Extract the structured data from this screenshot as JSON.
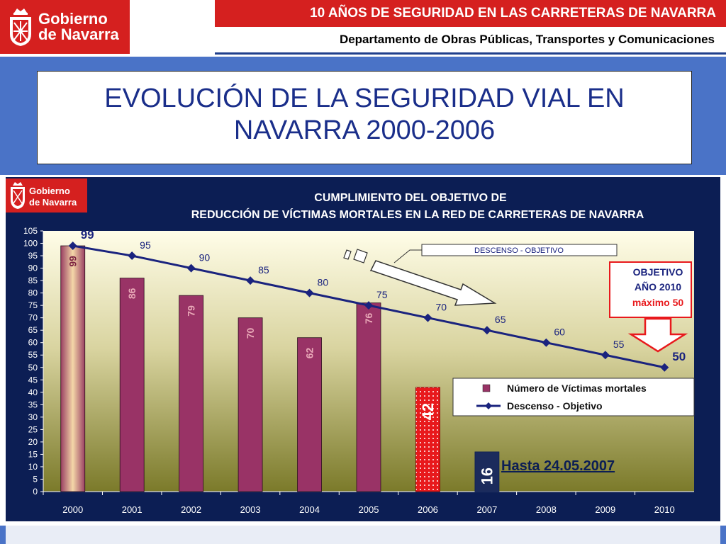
{
  "header": {
    "brand_line1": "Gobierno",
    "brand_line2": "de Navarra",
    "banner": "10 AÑOS DE SEGURIDAD EN LAS CARRETERAS DE NAVARRA",
    "department": "Departamento de Obras Públicas, Transportes y Comunicaciones"
  },
  "slide": {
    "title_line1": "EVOLUCIÓN DE LA SEGURIDAD VIAL EN",
    "title_line2": "NAVARRA 2000-2006"
  },
  "colors": {
    "brand_red": "#d5201f",
    "panel_navy": "#0c1e54",
    "band_blue": "#4a73c7",
    "bar_maroon": "#993366",
    "line_navy": "#1a237e",
    "bar_2006_red": "#e8191c",
    "bar_2007_navy": "#1b2b5c"
  },
  "chart_data": {
    "type": "bar",
    "title_line1": "CUMPLIMIENTO DEL OBJETIVO DE",
    "title_line2": "REDUCCIÓN DE VÍCTIMAS MORTALES EN LA RED DE CARRETERAS DE NAVARRA",
    "categories": [
      "2000",
      "2001",
      "2002",
      "2003",
      "2004",
      "2005",
      "2006",
      "2007",
      "2008",
      "2009",
      "2010"
    ],
    "series": [
      {
        "name": "Número de Víctimas mortales",
        "type": "bar",
        "values": [
          99,
          86,
          79,
          70,
          62,
          76,
          42,
          16,
          null,
          null,
          null
        ]
      },
      {
        "name": "Descenso - Objetivo",
        "type": "line",
        "values": [
          99,
          95,
          90,
          85,
          80,
          75,
          70,
          65,
          60,
          55,
          50
        ]
      }
    ],
    "ylim": [
      0,
      105
    ],
    "yticks": [
      0,
      5,
      10,
      15,
      20,
      25,
      30,
      35,
      40,
      45,
      50,
      55,
      60,
      65,
      70,
      75,
      80,
      85,
      90,
      95,
      100,
      105
    ],
    "grid": false,
    "legend_position": "right-middle",
    "annotations": {
      "descenso_label": "DESCENSO - OBJETIVO",
      "objetivo_line1": "OBJETIVO",
      "objetivo_line2": "AÑO 2010",
      "objetivo_line3": "máximo 50",
      "hasta": "Hasta 24.05.2007"
    }
  }
}
